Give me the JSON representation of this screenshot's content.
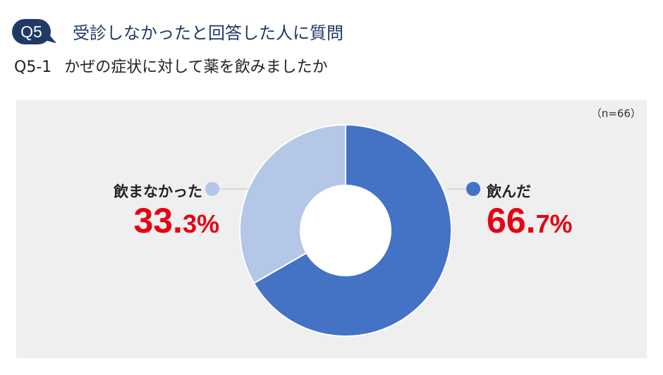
{
  "header": {
    "badge": "Q5",
    "title": "受診しなかったと回答した人に質問"
  },
  "question": {
    "number": "Q5-1",
    "text": "かぜの症状に対して薬を飲みましたか"
  },
  "sample_size": "（n=66）",
  "chart_data": {
    "type": "pie",
    "variant": "donut",
    "title": "",
    "categories": [
      "飲んだ",
      "飲まなかった"
    ],
    "values": [
      66.7,
      33.3
    ],
    "unit": "%",
    "colors": [
      "#4472c4",
      "#b4c7e7"
    ],
    "labels": [
      {
        "name": "飲んだ",
        "int": "66.",
        "dec": "7",
        "unit": "%"
      },
      {
        "name": "飲まなかった",
        "int": "33.",
        "dec": "3",
        "unit": "%"
      }
    ]
  },
  "colors": {
    "accent": "#1f3a66",
    "panel": "#efefef",
    "percent_text": "#e60012"
  }
}
